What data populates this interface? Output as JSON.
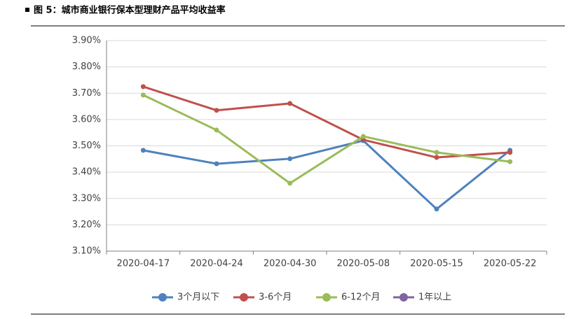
{
  "chart_data": {
    "type": "line",
    "title": "图 5：城市商业银行保本型理财产品平均收益率",
    "categories": [
      "2020-04-17",
      "2020-04-24",
      "2020-04-30",
      "2020-05-08",
      "2020-05-15",
      "2020-05-22"
    ],
    "series": [
      {
        "name": "3个月以下",
        "color": "#4f81bd",
        "values": [
          3.483,
          3.432,
          3.451,
          3.52,
          3.26,
          3.483
        ]
      },
      {
        "name": "3-6个月",
        "color": "#c0504d",
        "values": [
          3.725,
          3.635,
          3.661,
          3.523,
          3.456,
          3.475
        ]
      },
      {
        "name": "6-12个月",
        "color": "#9bbb59",
        "values": [
          3.693,
          3.56,
          3.358,
          3.536,
          3.475,
          3.44
        ]
      },
      {
        "name": "1年以上",
        "color": "#8064a2",
        "values": [
          null,
          null,
          null,
          null,
          null,
          null
        ]
      }
    ],
    "ylim": [
      3.1,
      3.9
    ],
    "yticks": [
      {
        "value": 3.1,
        "label": "3.10%"
      },
      {
        "value": 3.2,
        "label": "3.20%"
      },
      {
        "value": 3.3,
        "label": "3.30%"
      },
      {
        "value": 3.4,
        "label": "3.40%"
      },
      {
        "value": 3.5,
        "label": "3.50%"
      },
      {
        "value": 3.6,
        "label": "3.60%"
      },
      {
        "value": 3.7,
        "label": "3.70%"
      },
      {
        "value": 3.8,
        "label": "3.80%"
      },
      {
        "value": 3.9,
        "label": "3.90%"
      }
    ],
    "grid": true
  }
}
